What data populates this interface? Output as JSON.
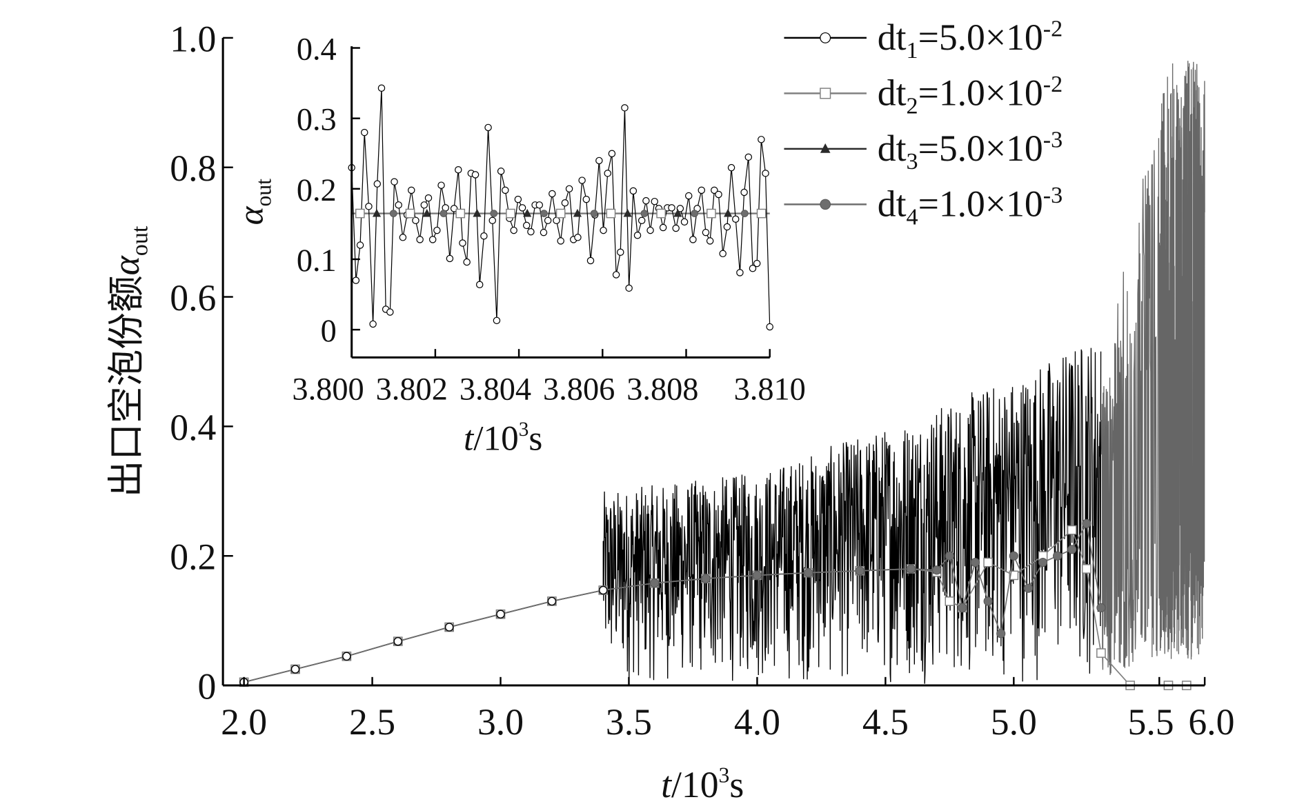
{
  "chart_data": [
    {
      "type": "line",
      "xlabel": "t/10³s",
      "ylabel": "出口空泡份额α_out",
      "xlim": [
        1.92,
        6.0
      ],
      "ylim": [
        0,
        1.0
      ],
      "x_ticks": [
        2.0,
        2.5,
        3.0,
        3.5,
        4.0,
        4.5,
        5.0,
        5.5,
        6.0
      ],
      "x_tick_labels": [
        "2.0",
        "2.5",
        "3.0",
        "3.5",
        "4.0",
        "4.5",
        "5.0",
        "5.5",
        "6.0"
      ],
      "x_axis_note": "axis compressed beyond 5.0",
      "y_ticks": [
        0,
        0.2,
        0.4,
        0.6,
        0.8,
        1.0
      ],
      "y_tick_labels": [
        "0",
        "0.2",
        "0.4",
        "0.6",
        "0.8",
        "1.0"
      ],
      "grid": false,
      "legend_position": "top-right",
      "series": [
        {
          "name": "dt1=5.0×10-2",
          "marker": "open-circle",
          "color": "#000000",
          "smooth_x": [
            2.0,
            2.2,
            2.4,
            2.6,
            2.8,
            3.0,
            3.2,
            3.4
          ],
          "smooth_y": [
            0.005,
            0.025,
            0.045,
            0.068,
            0.09,
            0.11,
            0.13,
            0.147
          ],
          "oscillation_envelope": {
            "t": [
              3.4,
              4.0,
              4.5,
              5.0,
              5.3
            ],
            "low": [
              0,
              0,
              0,
              0,
              0
            ],
            "high": [
              0.3,
              0.33,
              0.4,
              0.48,
              0.55
            ]
          }
        },
        {
          "name": "dt2=1.0×10-2",
          "marker": "open-square",
          "color": "#808080",
          "x": [
            2.0,
            2.2,
            2.4,
            2.6,
            2.8,
            3.0,
            3.2,
            3.4,
            3.6,
            3.8,
            4.0,
            4.2,
            4.4,
            4.6,
            4.7,
            4.75,
            4.8,
            4.9,
            5.0,
            5.1,
            5.2,
            5.25,
            5.3,
            5.4,
            5.6,
            5.8
          ],
          "y": [
            0.005,
            0.025,
            0.045,
            0.068,
            0.09,
            0.11,
            0.13,
            0.147,
            0.158,
            0.165,
            0.17,
            0.174,
            0.177,
            0.18,
            0.175,
            0.13,
            0.12,
            0.19,
            0.17,
            0.2,
            0.24,
            0.18,
            0.05,
            0.0,
            0.0,
            0.0
          ]
        },
        {
          "name": "dt3=5.0×10-3",
          "marker": "filled-triangle",
          "color": "#2a2a2a",
          "x": [
            2.0,
            2.2,
            2.4,
            2.6,
            2.8,
            3.0,
            3.2,
            3.4,
            3.6,
            3.8,
            4.0,
            4.2,
            4.4,
            4.6,
            4.7
          ],
          "y": [
            0.005,
            0.025,
            0.045,
            0.068,
            0.09,
            0.11,
            0.13,
            0.147,
            0.158,
            0.165,
            0.17,
            0.174,
            0.177,
            0.18,
            0.178
          ]
        },
        {
          "name": "dt4=1.0×10-3",
          "marker": "filled-circle",
          "color": "#6e6e6e",
          "x": [
            2.0,
            2.2,
            2.4,
            2.6,
            2.8,
            3.0,
            3.2,
            3.4,
            3.6,
            3.8,
            4.0,
            4.2,
            4.4,
            4.6,
            4.7,
            4.75,
            4.8,
            4.85,
            4.9,
            4.95,
            5.0,
            5.05,
            5.1,
            5.15,
            5.2,
            5.25,
            5.3
          ],
          "y": [
            0.005,
            0.025,
            0.045,
            0.068,
            0.09,
            0.11,
            0.13,
            0.147,
            0.158,
            0.165,
            0.17,
            0.174,
            0.177,
            0.18,
            0.178,
            0.2,
            0.12,
            0.19,
            0.13,
            0.08,
            0.2,
            0.15,
            0.19,
            0.2,
            0.21,
            0.25,
            0.12
          ],
          "oscillation_envelope": {
            "t": [
              5.3,
              5.4,
              5.5,
              5.6,
              6.0
            ],
            "low": [
              0,
              0,
              0,
              0,
              0
            ],
            "high": [
              0.45,
              0.7,
              0.9,
              0.97,
              0.97
            ]
          }
        }
      ]
    },
    {
      "type": "line",
      "xlabel": "t/10³s",
      "ylabel": "α_out",
      "xlim": [
        3.8,
        3.81
      ],
      "ylim": [
        -0.04,
        0.4
      ],
      "x_ticks": [
        3.8,
        3.802,
        3.804,
        3.806,
        3.808,
        3.81
      ],
      "x_tick_labels": [
        "3.800",
        "3.802",
        "3.804",
        "3.806",
        "3.808",
        "3.810"
      ],
      "y_ticks": [
        0,
        0.1,
        0.2,
        0.3,
        0.4
      ],
      "y_tick_labels": [
        "0",
        "0.1",
        "0.2",
        "0.3",
        "0.4"
      ],
      "grid": false,
      "series": [
        {
          "name": "dt1",
          "marker": "open-circle",
          "color": "#000000",
          "y": [
            0.23,
            0.07,
            0.12,
            0.28,
            0.175,
            0.008,
            0.207,
            0.343,
            0.029,
            0.025,
            0.21,
            0.177,
            0.131,
            0.163,
            0.198,
            0.155,
            0.128,
            0.177,
            0.187,
            0.128,
            0.141,
            0.205,
            0.173,
            0.101,
            0.172,
            0.227,
            0.123,
            0.096,
            0.222,
            0.22,
            0.064,
            0.133,
            0.287,
            0.155,
            0.013,
            0.225,
            0.198,
            0.158,
            0.141,
            0.185,
            0.173,
            0.148,
            0.139,
            0.177,
            0.177,
            0.138,
            0.155,
            0.193,
            0.155,
            0.126,
            0.18,
            0.2,
            0.128,
            0.131,
            0.212,
            0.185,
            0.098,
            0.163,
            0.24,
            0.141,
            0.222,
            0.25,
            0.078,
            0.11,
            0.315,
            0.059,
            0.197,
            0.134,
            0.155,
            0.183,
            0.141,
            0.182,
            0.172,
            0.145,
            0.173,
            0.173,
            0.144,
            0.172,
            0.153,
            0.19,
            0.128,
            0.172,
            0.198,
            0.138,
            0.126,
            0.198,
            0.192,
            0.108,
            0.146,
            0.23,
            0.157,
            0.081,
            0.195,
            0.245,
            0.087,
            0.094,
            0.27,
            0.222,
            0.004
          ]
        },
        {
          "name": "dt2",
          "marker": "open-square",
          "color": "#808080",
          "value": 0.165
        },
        {
          "name": "dt3",
          "marker": "filled-triangle",
          "color": "#2a2a2a",
          "value": 0.165
        },
        {
          "name": "dt4",
          "marker": "filled-circle",
          "color": "#6e6e6e",
          "value": 0.165
        }
      ]
    }
  ],
  "legend": [
    {
      "base": "dt",
      "sub": "1",
      "rest": "=5.0×10",
      "sup": "-2"
    },
    {
      "base": "dt",
      "sub": "2",
      "rest": "=1.0×10",
      "sup": "-2"
    },
    {
      "base": "dt",
      "sub": "3",
      "rest": "=5.0×10",
      "sup": "-3"
    },
    {
      "base": "dt",
      "sub": "4",
      "rest": "=1.0×10",
      "sup": "-3"
    }
  ],
  "labels": {
    "main_ylabel_cn": "出口空泡份额",
    "alpha": "α",
    "out": "out",
    "t": "t",
    "unit": "/10",
    "exp": "3",
    "s": "s"
  }
}
